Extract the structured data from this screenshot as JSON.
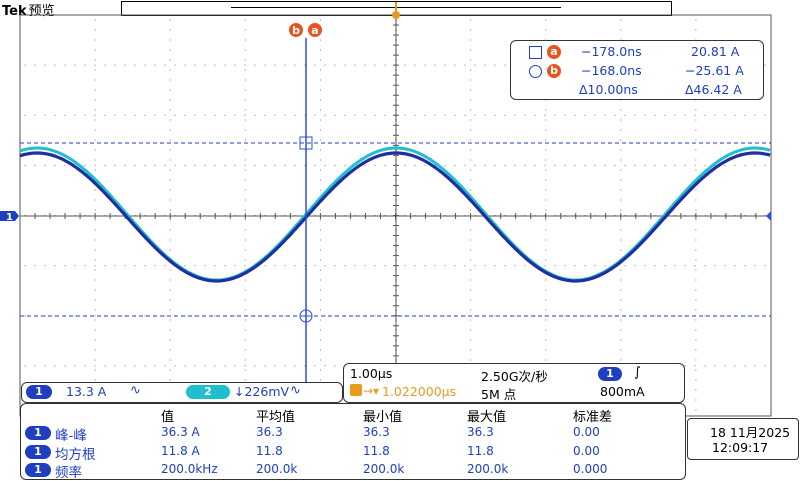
{
  "header": {
    "brand": "Tek",
    "mode": "预览"
  },
  "colors": {
    "ch1": "#1f3fbf",
    "ch2": "#1fbfcf",
    "cursor": "#e8541e",
    "trigger": "#e89b1e",
    "grid": "#6b6b6b"
  },
  "cursors": {
    "a_label": "a",
    "b_label": "b",
    "a_time": "−178.0ns",
    "a_value": "20.81 A",
    "b_time": "−168.0ns",
    "b_value": "−25.61 A",
    "delta_time": "Δ10.00ns",
    "delta_value": "Δ46.42 A"
  },
  "channels": {
    "ch1_num": "1",
    "ch1_scale": "13.3 A",
    "ch1_coupling": "∿",
    "ch2_num": "2",
    "ch2_scale": "↓226mV",
    "ch2_coupling": "∿"
  },
  "timebase": {
    "scale": "1.00µs",
    "sample_rate": "2.50G次/秒",
    "trigger_src": "1",
    "trigger_slope": "∫",
    "trigger_pos": "1.022000µs",
    "record_length": "5M 点",
    "trigger_level": "800mA"
  },
  "measurements": {
    "headers": [
      "值",
      "平均值",
      "最小值",
      "最大值",
      "标准差"
    ],
    "rows": [
      {
        "ch": "1",
        "name": "峰-峰",
        "values": [
          "36.3 A",
          "36.3",
          "36.3",
          "36.3",
          "0.00"
        ]
      },
      {
        "ch": "1",
        "name": "均方根",
        "values": [
          "11.8 A",
          "11.8",
          "11.8",
          "11.8",
          "0.00"
        ]
      },
      {
        "ch": "1",
        "name": "频率",
        "values": [
          "200.0kHz",
          "200.0k",
          "200.0k",
          "200.0k",
          "0.000"
        ]
      }
    ]
  },
  "datetime": {
    "date": "18 11月2025",
    "time": "12:09:17"
  }
}
